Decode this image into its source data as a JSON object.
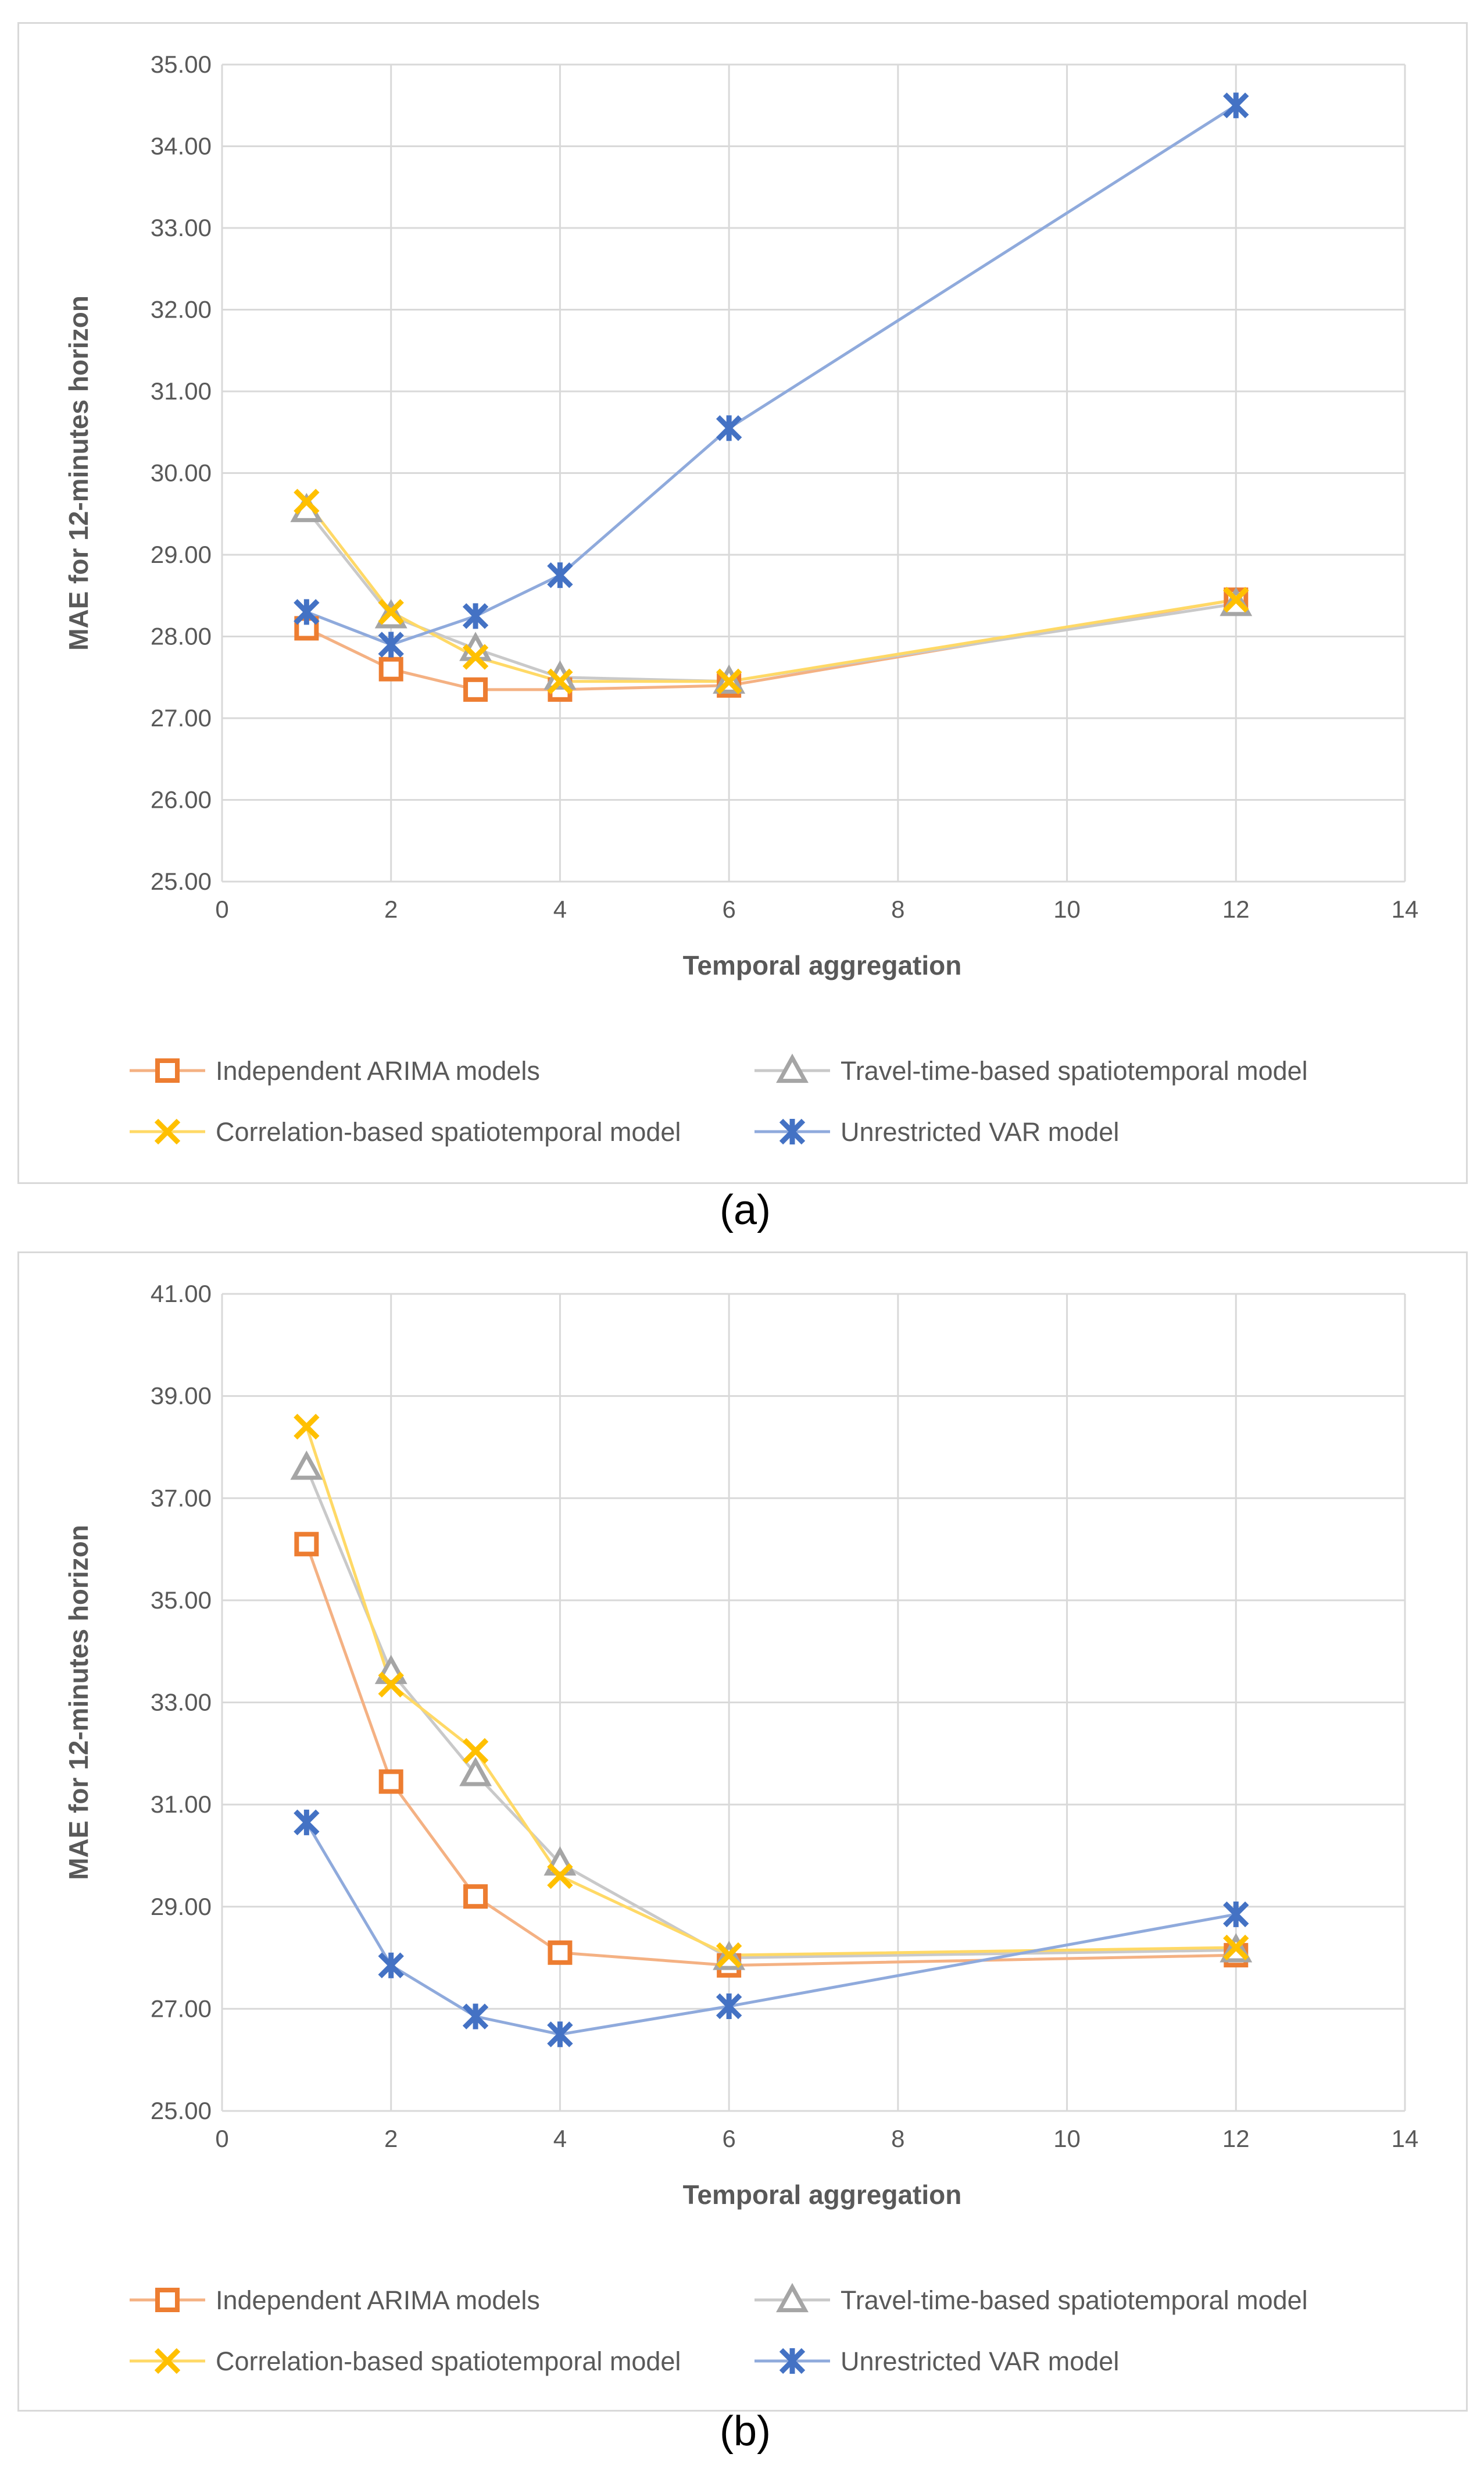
{
  "figure": {
    "captions": [
      "(a)",
      "(b)"
    ]
  },
  "series_colors": {
    "Independent ARIMA models": "#ed7d31",
    "Travel-time-based spatiotemporal model": "#a5a5a5",
    "Correlation-based spatiotemporal model": "#ffc000",
    "Unrestricted VAR model": "#4472c4"
  },
  "line_colors": {
    "Independent ARIMA models": "#f4b183",
    "Travel-time-based spatiotemporal model": "#c9c9c9",
    "Correlation-based spatiotemporal model": "#ffd966",
    "Unrestricted VAR model": "#8faadc"
  },
  "chart_data": [
    {
      "type": "line",
      "panel": "(a)",
      "xlabel": "Temporal aggregation",
      "ylabel": "MAE for 12-minutes horizon",
      "xlim": [
        0,
        14
      ],
      "ylim": [
        25,
        35
      ],
      "xticks": [
        0,
        2,
        4,
        6,
        8,
        10,
        12,
        14
      ],
      "yticks": [
        "25.00",
        "26.00",
        "27.00",
        "28.00",
        "29.00",
        "30.00",
        "31.00",
        "32.00",
        "33.00",
        "34.00",
        "35.00"
      ],
      "grid": true,
      "legend_position": "bottom",
      "x": [
        1,
        2,
        3,
        4,
        6,
        12
      ],
      "series": [
        {
          "name": "Independent ARIMA models",
          "marker": "square",
          "values": [
            28.1,
            27.6,
            27.35,
            27.35,
            27.4,
            28.45
          ]
        },
        {
          "name": "Travel-time-based spatiotemporal model",
          "marker": "triangle",
          "values": [
            29.55,
            28.25,
            27.85,
            27.5,
            27.45,
            28.4
          ]
        },
        {
          "name": "Correlation-based spatiotemporal model",
          "marker": "x",
          "values": [
            29.65,
            28.3,
            27.75,
            27.45,
            27.45,
            28.45
          ]
        },
        {
          "name": "Unrestricted VAR model",
          "marker": "star",
          "values": [
            28.3,
            27.9,
            28.25,
            28.75,
            30.55,
            34.5
          ]
        }
      ]
    },
    {
      "type": "line",
      "panel": "(b)",
      "xlabel": "Temporal aggregation",
      "ylabel": "MAE for 12-minutes horizon",
      "xlim": [
        0,
        14
      ],
      "ylim": [
        25,
        41
      ],
      "xticks": [
        0,
        2,
        4,
        6,
        8,
        10,
        12,
        14
      ],
      "yticks": [
        "25.00",
        "27.00",
        "29.00",
        "31.00",
        "33.00",
        "35.00",
        "37.00",
        "39.00",
        "41.00"
      ],
      "grid": true,
      "legend_position": "bottom",
      "x": [
        1,
        2,
        3,
        4,
        6,
        12
      ],
      "series": [
        {
          "name": "Independent ARIMA models",
          "marker": "square",
          "values": [
            36.1,
            31.45,
            29.2,
            28.1,
            27.85,
            28.05
          ]
        },
        {
          "name": "Travel-time-based spatiotemporal model",
          "marker": "triangle",
          "values": [
            37.6,
            33.6,
            31.6,
            29.85,
            28.0,
            28.15
          ]
        },
        {
          "name": "Correlation-based spatiotemporal model",
          "marker": "x",
          "values": [
            38.4,
            33.35,
            32.05,
            29.6,
            28.05,
            28.2
          ]
        },
        {
          "name": "Unrestricted VAR model",
          "marker": "star",
          "values": [
            30.65,
            27.85,
            26.85,
            26.5,
            27.05,
            28.85
          ]
        }
      ]
    }
  ]
}
